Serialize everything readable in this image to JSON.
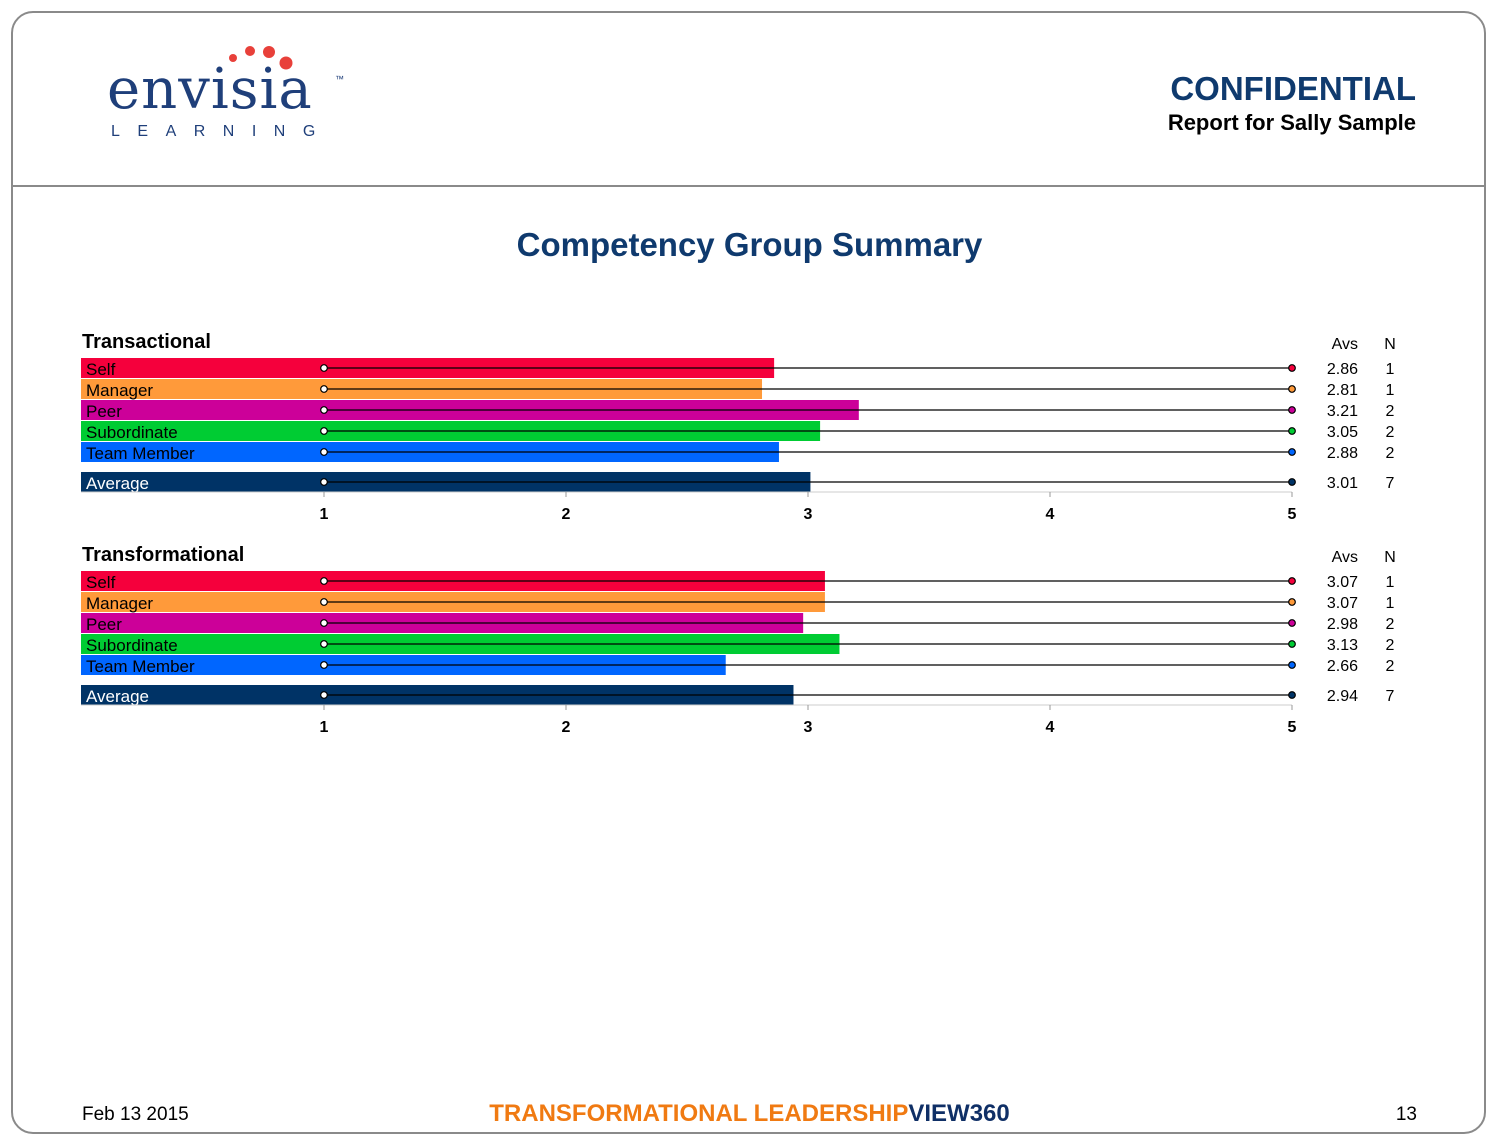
{
  "logo": {
    "word": "envisia",
    "tm": "™",
    "sub": "LEARNING"
  },
  "header": {
    "confidential": "CONFIDENTIAL",
    "report_for": "Report for Sally Sample"
  },
  "page_title": "Competency Group Summary",
  "footer": {
    "date": "Feb 13 2015",
    "brand_a": "TRANSFORMATIONAL LEADERSHIP",
    "brand_b": "VIEW360",
    "page": "13"
  },
  "colors": {
    "Self": "#f5003c",
    "Manager": "#ff9a3a",
    "Peer": "#cc0099",
    "Subordinate": "#00cc33",
    "Team Member": "#0066ff",
    "Average": "#003366",
    "title_blue": "#0f3a6e",
    "brand_orange": "#f07a12",
    "logo_dots": "#e8403a"
  },
  "chart_data": [
    {
      "type": "bar",
      "title": "Transactional",
      "xlim": [
        1,
        5
      ],
      "xticks": [
        "1",
        "2",
        "3",
        "4",
        "5"
      ],
      "col_headers": [
        "Avs",
        "N"
      ],
      "categories": [
        "Self",
        "Manager",
        "Peer",
        "Subordinate",
        "Team Member",
        "Average"
      ],
      "values": [
        2.86,
        2.81,
        3.21,
        3.05,
        2.88,
        3.01
      ],
      "n": [
        1,
        1,
        2,
        2,
        2,
        7
      ]
    },
    {
      "type": "bar",
      "title": "Transformational",
      "xlim": [
        1,
        5
      ],
      "xticks": [
        "1",
        "2",
        "3",
        "4",
        "5"
      ],
      "col_headers": [
        "Avs",
        "N"
      ],
      "categories": [
        "Self",
        "Manager",
        "Peer",
        "Subordinate",
        "Team Member",
        "Average"
      ],
      "values": [
        3.07,
        3.07,
        2.98,
        3.13,
        2.66,
        2.94
      ],
      "n": [
        1,
        1,
        2,
        2,
        2,
        7
      ]
    }
  ]
}
